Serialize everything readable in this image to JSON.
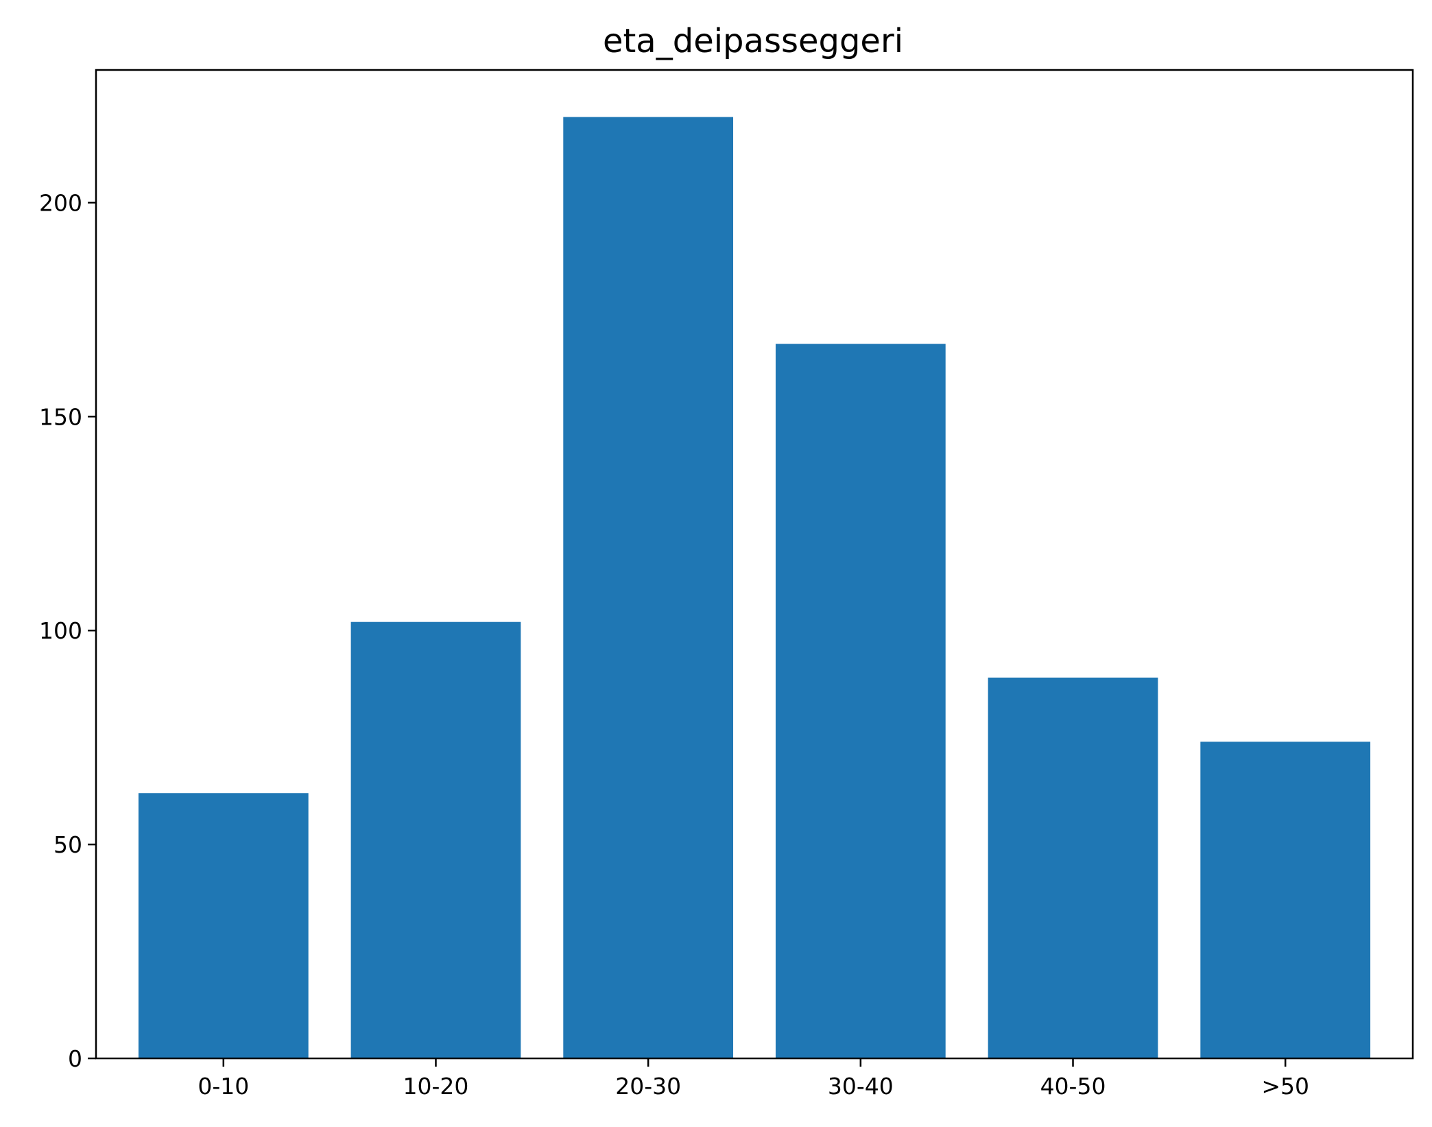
{
  "chart_data": {
    "type": "bar",
    "title": "eta_deipasseggeri",
    "xlabel": "",
    "ylabel": "",
    "categories": [
      "0-10",
      "10-20",
      "20-30",
      "30-40",
      "40-50",
      ">50"
    ],
    "values": [
      62,
      102,
      220,
      167,
      89,
      74
    ],
    "ylim": [
      0,
      231
    ],
    "yticks": [
      0,
      50,
      100,
      150,
      200
    ],
    "bar_color": "#1f77b4",
    "grid": false,
    "legend": "none"
  }
}
